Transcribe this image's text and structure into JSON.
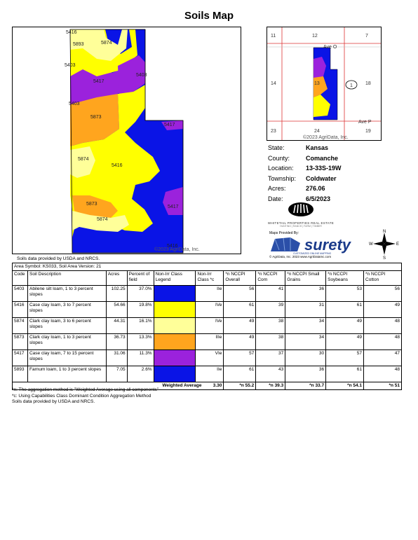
{
  "page": {
    "title": "Soils Map",
    "main_map_copyright": "©2023 AgriData, Inc.",
    "usda_note": "Soils data provided by USDA and NRCS."
  },
  "main_map": {
    "soil_labels": [
      "5416",
      "5893",
      "5874",
      "5403",
      "5417",
      "5403",
      "5403",
      "5873",
      "5874",
      "5416",
      "5873",
      "5874",
      "5417",
      "5417",
      "5416"
    ]
  },
  "location_map": {
    "section_labels": [
      "11",
      "12",
      "7",
      "14",
      "13",
      "18",
      "23",
      "24",
      "19",
      "1"
    ],
    "road_labels": [
      "Ave O",
      "Ave P"
    ],
    "copyright": "©2023 AgriData, Inc."
  },
  "info": {
    "rows": [
      {
        "key": "State:",
        "value": "Kansas"
      },
      {
        "key": "County:",
        "value": "Comanche"
      },
      {
        "key": "Location:",
        "value": "13-33S-19W"
      },
      {
        "key": "Township:",
        "value": "Coldwater"
      },
      {
        "key": "Acres:",
        "value": "276.06"
      },
      {
        "key": "Date:",
        "value": "6/5/2023"
      }
    ]
  },
  "branding": {
    "wpre_name": "WHITETAIL PROPERTIES REAL ESTATE",
    "wpre_tag": "HUNTING | RANCH | FARM | TIMBER",
    "maps_provided_by": "Maps Provided By:",
    "surety_name": "surety",
    "surety_tagline": "CUSTOMIZED ONLINE MAPPING",
    "agri_copyright": "© AgriData, Inc. 2023      www.AgriDataInc.com",
    "compass": {
      "n": "N",
      "s": "S",
      "e": "E",
      "w": "W"
    }
  },
  "table": {
    "area_symbol": "Area Symbol: KS033, Soil Area Version: 21",
    "headers": [
      "Code",
      "Soil Description",
      "Acres",
      "Percent of field",
      "Non-Irr Class Legend",
      "Non-Irr Class *c",
      "*n NCCPI Overall",
      "*n NCCPI Corn",
      "*n NCCPI Small Grains",
      "*n NCCPI Soybeans",
      "*n NCCPI Cotton"
    ],
    "rows": [
      {
        "code": "5403",
        "desc": "Abilene silt loam, 1 to 3 percent slopes",
        "acres": "102.25",
        "pct": "37.0%",
        "color": "#0a14e6",
        "cls": "IIe",
        "overall": "56",
        "corn": "41",
        "small": "36",
        "soy": "53",
        "cotton": "56"
      },
      {
        "code": "5416",
        "desc": "Case clay loam, 3 to 7 percent slopes",
        "acres": "54.66",
        "pct": "19.8%",
        "color": "#ffff00",
        "cls": "IVe",
        "overall": "61",
        "corn": "39",
        "small": "31",
        "soy": "61",
        "cotton": "49"
      },
      {
        "code": "5874",
        "desc": "Clark clay loam, 3 to 6 percent slopes",
        "acres": "44.31",
        "pct": "16.1%",
        "color": "#ffff99",
        "cls": "IVe",
        "overall": "49",
        "corn": "38",
        "small": "34",
        "soy": "49",
        "cotton": "48"
      },
      {
        "code": "5873",
        "desc": "Clark clay loam, 1 to 3 percent slopes",
        "acres": "36.73",
        "pct": "13.3%",
        "color": "#ffa51e",
        "cls": "IIIe",
        "overall": "49",
        "corn": "38",
        "small": "34",
        "soy": "49",
        "cotton": "48"
      },
      {
        "code": "5417",
        "desc": "Case clay loam, 7 to 15 percent slopes",
        "acres": "31.06",
        "pct": "11.3%",
        "color": "#9b22dc",
        "cls": "VIe",
        "overall": "57",
        "corn": "37",
        "small": "30",
        "soy": "57",
        "cotton": "47"
      },
      {
        "code": "5893",
        "desc": "Farnum loam, 1 to 3 percent slopes",
        "acres": "7.05",
        "pct": "2.6%",
        "color": "#0a14e6",
        "cls": "IIe",
        "overall": "61",
        "corn": "43",
        "small": "36",
        "soy": "61",
        "cotton": "48"
      }
    ],
    "weighted": {
      "label": "Weighted Average",
      "cls": "3.30",
      "overall": "*n 55.2",
      "corn": "*n 39.3",
      "small": "*n 33.7",
      "soy": "*n 54.1",
      "cotton": "*n 51"
    }
  },
  "footnotes": [
    "*n: The aggregation method is \"Weighted Average using all components\"",
    "*c: Using Capabilities Class Dominant Condition Aggregation Method",
    "Soils data provided by USDA and NRCS."
  ],
  "colors": {
    "blue": "#0a14e6",
    "yellow": "#ffff00",
    "pale_yellow": "#ffff99",
    "orange": "#ffa51e",
    "purple": "#9b22dc"
  }
}
